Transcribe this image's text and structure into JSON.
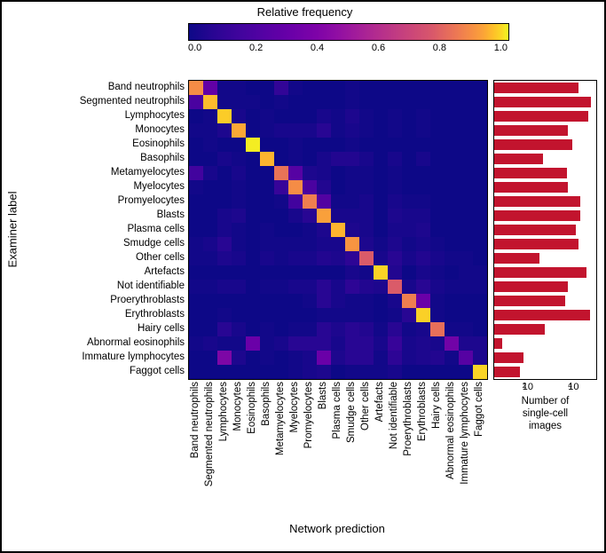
{
  "colorbar": {
    "title": "Relative frequency",
    "ticks": [
      "0.0",
      "0.2",
      "0.4",
      "0.6",
      "0.8",
      "1.0"
    ],
    "gradient_css": "linear-gradient(to right, #0d0887 0%, #2a0593 8%, #41049d 16%, #5601a4 24%, #6a00a8 32%, #7e03a8 40%, #8f0da4 46%, #a11b9b 52%, #b12a90 58%, #bf3984 64%, #cc4778 70%, #d8576b 76%, #e3685f 80%, #ed7953 84%, #f58c46 88%, #fba238 92%, #febd2a 95%, #fada24 98%, #f0f921 100%)"
  },
  "axes": {
    "ylabel": "Examiner label",
    "xlabel": "Network prediction",
    "bar_xlabel1": "Number of",
    "bar_xlabel2": "single-cell",
    "bar_xlabel3": "images"
  },
  "categories": [
    "Band neutrophils",
    "Segmented neutrophils",
    "Lymphocytes",
    "Monocytes",
    "Eosinophils",
    "Basophils",
    "Metamyelocytes",
    "Myelocytes",
    "Promyelocytes",
    "Blasts",
    "Plasma cells",
    "Smudge cells",
    "Other cells",
    "Artefacts",
    "Not identifiable",
    "Proerythroblasts",
    "Erythroblasts",
    "Hairy cells",
    "Abnormal eosinophils",
    "Immature lymphocytes",
    "Faggot cells"
  ],
  "matrix": [
    [
      0.7,
      0.18,
      0.01,
      0.01,
      0.0,
      0.0,
      0.07,
      0.01,
      0.0,
      0.0,
      0.0,
      0.01,
      0.0,
      0.0,
      0.0,
      0.0,
      0.0,
      0.0,
      0.0,
      0.0,
      0.0
    ],
    [
      0.12,
      0.82,
      0.01,
      0.01,
      0.01,
      0.0,
      0.01,
      0.0,
      0.0,
      0.0,
      0.0,
      0.01,
      0.0,
      0.0,
      0.0,
      0.0,
      0.0,
      0.0,
      0.0,
      0.0,
      0.0
    ],
    [
      0.0,
      0.01,
      0.86,
      0.02,
      0.0,
      0.01,
      0.0,
      0.0,
      0.0,
      0.02,
      0.01,
      0.03,
      0.01,
      0.0,
      0.01,
      0.0,
      0.01,
      0.0,
      0.0,
      0.0,
      0.0
    ],
    [
      0.01,
      0.01,
      0.03,
      0.77,
      0.0,
      0.01,
      0.02,
      0.02,
      0.02,
      0.05,
      0.01,
      0.02,
      0.01,
      0.0,
      0.01,
      0.0,
      0.01,
      0.0,
      0.0,
      0.0,
      0.0
    ],
    [
      0.0,
      0.01,
      0.0,
      0.0,
      0.96,
      0.0,
      0.0,
      0.01,
      0.0,
      0.0,
      0.0,
      0.01,
      0.0,
      0.0,
      0.0,
      0.0,
      0.0,
      0.0,
      0.0,
      0.0,
      0.0
    ],
    [
      0.0,
      0.0,
      0.02,
      0.01,
      0.0,
      0.8,
      0.0,
      0.01,
      0.0,
      0.02,
      0.04,
      0.04,
      0.02,
      0.0,
      0.02,
      0.0,
      0.02,
      0.0,
      0.0,
      0.0,
      0.0
    ],
    [
      0.1,
      0.02,
      0.0,
      0.02,
      0.0,
      0.0,
      0.63,
      0.15,
      0.03,
      0.02,
      0.0,
      0.01,
      0.01,
      0.0,
      0.01,
      0.0,
      0.0,
      0.0,
      0.0,
      0.0,
      0.0
    ],
    [
      0.01,
      0.0,
      0.0,
      0.01,
      0.0,
      0.0,
      0.08,
      0.7,
      0.12,
      0.04,
      0.0,
      0.01,
      0.01,
      0.0,
      0.01,
      0.0,
      0.0,
      0.0,
      0.0,
      0.0,
      0.0
    ],
    [
      0.0,
      0.0,
      0.0,
      0.01,
      0.0,
      0.0,
      0.01,
      0.1,
      0.66,
      0.14,
      0.01,
      0.01,
      0.02,
      0.0,
      0.02,
      0.01,
      0.01,
      0.0,
      0.0,
      0.0,
      0.0
    ],
    [
      0.0,
      0.0,
      0.02,
      0.03,
      0.0,
      0.0,
      0.0,
      0.02,
      0.05,
      0.75,
      0.02,
      0.02,
      0.02,
      0.0,
      0.03,
      0.02,
      0.02,
      0.0,
      0.0,
      0.0,
      0.0
    ],
    [
      0.0,
      0.0,
      0.02,
      0.01,
      0.0,
      0.01,
      0.0,
      0.0,
      0.01,
      0.03,
      0.8,
      0.03,
      0.02,
      0.0,
      0.02,
      0.02,
      0.03,
      0.0,
      0.0,
      0.0,
      0.0
    ],
    [
      0.01,
      0.02,
      0.05,
      0.01,
      0.0,
      0.01,
      0.01,
      0.01,
      0.01,
      0.02,
      0.02,
      0.72,
      0.03,
      0.01,
      0.03,
      0.01,
      0.02,
      0.01,
      0.0,
      0.0,
      0.0
    ],
    [
      0.01,
      0.01,
      0.03,
      0.02,
      0.0,
      0.02,
      0.01,
      0.02,
      0.02,
      0.04,
      0.03,
      0.06,
      0.56,
      0.02,
      0.05,
      0.02,
      0.04,
      0.02,
      0.01,
      0.01,
      0.0
    ],
    [
      0.0,
      0.0,
      0.0,
      0.0,
      0.0,
      0.0,
      0.0,
      0.0,
      0.0,
      0.0,
      0.0,
      0.02,
      0.01,
      0.88,
      0.04,
      0.0,
      0.02,
      0.01,
      0.0,
      0.01,
      0.01
    ],
    [
      0.01,
      0.01,
      0.02,
      0.02,
      0.0,
      0.01,
      0.01,
      0.02,
      0.02,
      0.05,
      0.02,
      0.06,
      0.04,
      0.03,
      0.56,
      0.02,
      0.05,
      0.02,
      0.01,
      0.01,
      0.01
    ],
    [
      0.0,
      0.0,
      0.0,
      0.0,
      0.0,
      0.0,
      0.0,
      0.0,
      0.01,
      0.05,
      0.02,
      0.01,
      0.01,
      0.0,
      0.02,
      0.66,
      0.2,
      0.01,
      0.0,
      0.0,
      0.0
    ],
    [
      0.0,
      0.0,
      0.01,
      0.0,
      0.0,
      0.0,
      0.0,
      0.0,
      0.0,
      0.01,
      0.01,
      0.01,
      0.01,
      0.0,
      0.01,
      0.05,
      0.87,
      0.01,
      0.0,
      0.0,
      0.0
    ],
    [
      0.0,
      0.0,
      0.05,
      0.02,
      0.0,
      0.01,
      0.0,
      0.01,
      0.01,
      0.05,
      0.03,
      0.05,
      0.04,
      0.01,
      0.05,
      0.01,
      0.02,
      0.62,
      0.01,
      0.01,
      0.0
    ],
    [
      0.01,
      0.02,
      0.01,
      0.01,
      0.2,
      0.01,
      0.02,
      0.05,
      0.05,
      0.05,
      0.02,
      0.05,
      0.05,
      0.02,
      0.08,
      0.02,
      0.03,
      0.02,
      0.22,
      0.03,
      0.03
    ],
    [
      0.0,
      0.0,
      0.25,
      0.03,
      0.0,
      0.01,
      0.0,
      0.01,
      0.02,
      0.2,
      0.03,
      0.05,
      0.05,
      0.01,
      0.06,
      0.02,
      0.03,
      0.04,
      0.01,
      0.15,
      0.03
    ],
    [
      0.0,
      0.0,
      0.0,
      0.0,
      0.0,
      0.0,
      0.0,
      0.01,
      0.02,
      0.03,
      0.0,
      0.01,
      0.01,
      0.01,
      0.02,
      0.0,
      0.0,
      0.0,
      0.0,
      0.0,
      0.88
    ]
  ],
  "bars": {
    "counts": [
      10000,
      30000,
      25000,
      4000,
      6000,
      400,
      3500,
      4000,
      12000,
      12000,
      8000,
      10000,
      300,
      20000,
      4000,
      3000,
      28000,
      500,
      10,
      70,
      50
    ],
    "color": "#c2142e",
    "log_min": 0.7,
    "log_max": 4.7,
    "tick_labels": [
      "10",
      "2",
      "10",
      "4"
    ]
  },
  "heatmap_bg": "#0d0887",
  "style": {
    "font_family": "Arial, Helvetica, sans-serif",
    "label_fontsize": 11.5,
    "axis_title_fontsize": 13
  }
}
